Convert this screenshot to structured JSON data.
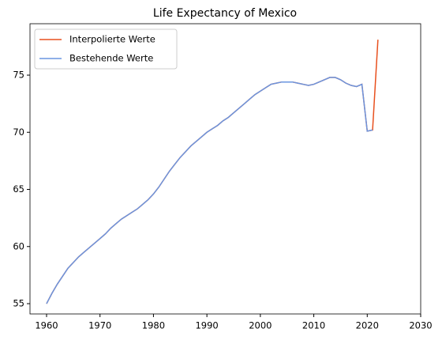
{
  "chart_data": {
    "type": "line",
    "title": "Life Expectancy of Mexico",
    "x": [
      1960,
      1961,
      1962,
      1963,
      1964,
      1965,
      1966,
      1967,
      1968,
      1969,
      1970,
      1971,
      1972,
      1973,
      1974,
      1975,
      1976,
      1977,
      1978,
      1979,
      1980,
      1981,
      1982,
      1983,
      1984,
      1985,
      1986,
      1987,
      1988,
      1989,
      1990,
      1991,
      1992,
      1993,
      1994,
      1995,
      1996,
      1997,
      1998,
      1999,
      2000,
      2001,
      2002,
      2003,
      2004,
      2005,
      2006,
      2007,
      2008,
      2009,
      2010,
      2011,
      2012,
      2013,
      2014,
      2015,
      2016,
      2017,
      2018,
      2019,
      2020,
      2021,
      2022
    ],
    "series": [
      {
        "name": "Interpolierte Werte",
        "color": "#e8501e",
        "values": [
          55.0,
          55.9,
          56.7,
          57.4,
          58.1,
          58.6,
          59.1,
          59.5,
          59.9,
          60.3,
          60.7,
          61.1,
          61.6,
          62.0,
          62.4,
          62.7,
          63.0,
          63.3,
          63.7,
          64.1,
          64.6,
          65.2,
          65.9,
          66.6,
          67.2,
          67.8,
          68.3,
          68.8,
          69.2,
          69.6,
          70.0,
          70.3,
          70.6,
          71.0,
          71.3,
          71.7,
          72.1,
          72.5,
          72.9,
          73.3,
          73.6,
          73.9,
          74.2,
          74.3,
          74.4,
          74.4,
          74.4,
          74.3,
          74.2,
          74.1,
          74.2,
          74.4,
          74.6,
          74.8,
          74.8,
          74.6,
          74.3,
          74.1,
          74.0,
          74.2,
          70.1,
          70.2,
          78.1
        ]
      },
      {
        "name": "Bestehende Werte",
        "color": "#6a95e0",
        "values": [
          55.0,
          55.9,
          56.7,
          57.4,
          58.1,
          58.6,
          59.1,
          59.5,
          59.9,
          60.3,
          60.7,
          61.1,
          61.6,
          62.0,
          62.4,
          62.7,
          63.0,
          63.3,
          63.7,
          64.1,
          64.6,
          65.2,
          65.9,
          66.6,
          67.2,
          67.8,
          68.3,
          68.8,
          69.2,
          69.6,
          70.0,
          70.3,
          70.6,
          71.0,
          71.3,
          71.7,
          72.1,
          72.5,
          72.9,
          73.3,
          73.6,
          73.9,
          74.2,
          74.3,
          74.4,
          74.4,
          74.4,
          74.3,
          74.2,
          74.1,
          74.2,
          74.4,
          74.6,
          74.8,
          74.8,
          74.6,
          74.3,
          74.1,
          74.0,
          74.2,
          70.1,
          70.2,
          null
        ]
      }
    ],
    "xlim": [
      1956.9,
      2030
    ],
    "xticks": [
      1960,
      1970,
      1980,
      1990,
      2000,
      2010,
      2020,
      2030
    ],
    "ylim": [
      54.1,
      79.5
    ],
    "yticks": [
      55,
      60,
      65,
      70,
      75
    ],
    "legend": "upper left",
    "grid": false
  }
}
